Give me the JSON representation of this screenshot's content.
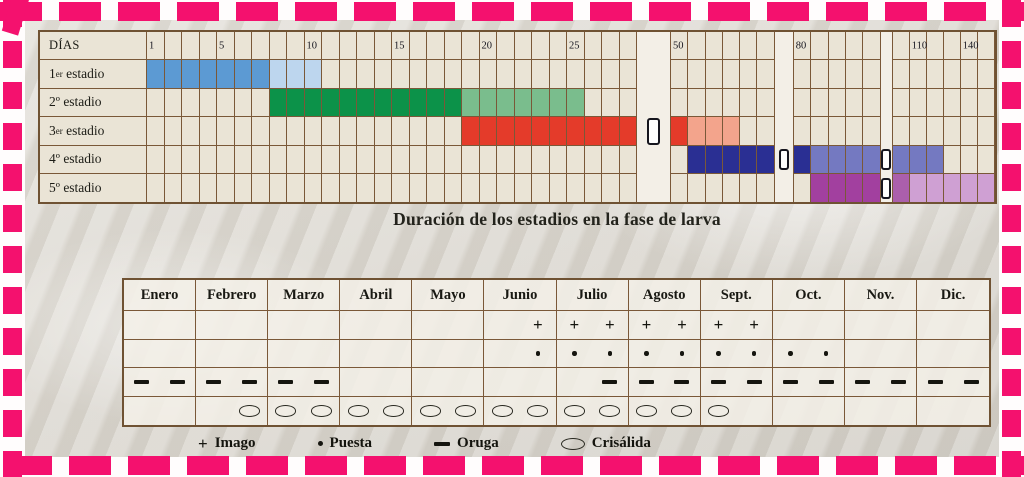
{
  "title": "Duración de los estadios en la fase de larva",
  "colors": {
    "stage1_solid": "#5c9ad3",
    "stage1_light": "#bdd6ee",
    "stage2_solid": "#0c9249",
    "stage2_light": "#7abd8d",
    "stage3_solid": "#e43b2a",
    "stage3_light": "#f3a48c",
    "stage4_solid": "#2a2f93",
    "stage4_light": "#7479c1",
    "stage5_solid": "#a2409f",
    "stage5_mid": "#ab5fac",
    "stage5_light": "#cfa0d3",
    "grid_line": "#7a5838",
    "cell_bg": "#eae4d6",
    "break_bg": "#f3efe7",
    "border_pink": "#f4116e",
    "text": "#1c1c16"
  },
  "chart_data": [
    {
      "type": "gantt",
      "title": "Duración de los estadios en la fase de larva",
      "x_axis_label": "DÍAS",
      "x_ticks": [
        "1",
        "5",
        "10",
        "15",
        "20",
        "25",
        "50",
        "80",
        "110",
        "140"
      ],
      "rows": [
        {
          "num": "1",
          "ord": "er",
          "word": "estadio"
        },
        {
          "num": "2",
          "ord": "º",
          "word": "estadio"
        },
        {
          "num": "3",
          "ord": "er",
          "word": "estadio"
        },
        {
          "num": "4",
          "ord": "º",
          "word": "estadio"
        },
        {
          "num": "5",
          "ord": "º",
          "word": "estadio"
        }
      ],
      "sections": [
        {
          "count": 28,
          "w": 17.5,
          "ticks": {
            "1": "1",
            "5": "5",
            "10": "10",
            "15": "15",
            "20": "20",
            "25": "25"
          },
          "fills": [
            {
              "row": 0,
              "from": 1,
              "to": 7,
              "color": "stage1_solid"
            },
            {
              "row": 0,
              "from": 8,
              "to": 10,
              "color": "stage1_light"
            },
            {
              "row": 1,
              "from": 8,
              "to": 18,
              "color": "stage2_solid"
            },
            {
              "row": 1,
              "from": 19,
              "to": 25,
              "color": "stage2_light"
            },
            {
              "row": 2,
              "from": 19,
              "to": 28,
              "color": "stage3_solid"
            }
          ]
        },
        {
          "break": true,
          "width": 33,
          "big": true,
          "brackets": [
            2
          ]
        },
        {
          "count": 6,
          "w": 17.3,
          "ticks": {
            "1": "50"
          },
          "fills": [
            {
              "row": 2,
              "from": 1,
              "to": 1,
              "color": "stage3_solid"
            },
            {
              "row": 2,
              "from": 2,
              "to": 4,
              "color": "stage3_light"
            },
            {
              "row": 3,
              "from": 2,
              "to": 6,
              "color": "stage4_solid"
            }
          ]
        },
        {
          "break": true,
          "width": 18,
          "brackets": [
            3
          ]
        },
        {
          "count": 5,
          "w": 17.4,
          "ticks": {
            "1": "80"
          },
          "fills": [
            {
              "row": 3,
              "from": 1,
              "to": 1,
              "color": "stage4_solid"
            },
            {
              "row": 3,
              "from": 2,
              "to": 5,
              "color": "stage4_light"
            },
            {
              "row": 4,
              "from": 2,
              "to": 5,
              "color": "stage5_solid"
            }
          ]
        },
        {
          "break": true,
          "width": 11,
          "brackets": [
            3,
            4
          ]
        },
        {
          "count": 6,
          "w": 17,
          "ticks": {
            "2": "110",
            "5": "140"
          },
          "fills": [
            {
              "row": 3,
              "from": 1,
              "to": 3,
              "color": "stage4_light"
            },
            {
              "row": 4,
              "from": 1,
              "to": 1,
              "color": "stage5_mid"
            },
            {
              "row": 4,
              "from": 2,
              "to": 6,
              "color": "stage5_light"
            }
          ]
        }
      ]
    },
    {
      "type": "table",
      "months": [
        "Enero",
        "Febrero",
        "Marzo",
        "Abril",
        "Mayo",
        "Junio",
        "Julio",
        "Agosto",
        "Sept.",
        "Oct.",
        "Nov.",
        "Dic."
      ],
      "symbol_defs": {
        "plus": "+"
      },
      "rows": [
        {
          "name": "imago",
          "symbol": "plus",
          "cells": [
            [
              0,
              0
            ],
            [
              0,
              0
            ],
            [
              0,
              0
            ],
            [
              0,
              0
            ],
            [
              0,
              0
            ],
            [
              0,
              1
            ],
            [
              1,
              1
            ],
            [
              1,
              1
            ],
            [
              1,
              1
            ],
            [
              0,
              0
            ],
            [
              0,
              0
            ],
            [
              0,
              0
            ]
          ]
        },
        {
          "name": "puesta",
          "symbol": "dot",
          "cells": [
            [
              0,
              0
            ],
            [
              0,
              0
            ],
            [
              0,
              0
            ],
            [
              0,
              0
            ],
            [
              0,
              0
            ],
            [
              0,
              1
            ],
            [
              1,
              1
            ],
            [
              1,
              1
            ],
            [
              1,
              1
            ],
            [
              1,
              1
            ],
            [
              0,
              0
            ],
            [
              0,
              0
            ]
          ]
        },
        {
          "name": "oruga",
          "symbol": "dash",
          "cells": [
            [
              1,
              1
            ],
            [
              1,
              1
            ],
            [
              1,
              1
            ],
            [
              0,
              0
            ],
            [
              0,
              0
            ],
            [
              0,
              0
            ],
            [
              0,
              1
            ],
            [
              1,
              1
            ],
            [
              1,
              1
            ],
            [
              1,
              1
            ],
            [
              1,
              1
            ],
            [
              1,
              1
            ]
          ]
        },
        {
          "name": "crisalida",
          "symbol": "oval",
          "cells": [
            [
              0,
              0
            ],
            [
              0,
              1
            ],
            [
              1,
              1
            ],
            [
              1,
              1
            ],
            [
              1,
              1
            ],
            [
              1,
              1
            ],
            [
              1,
              1
            ],
            [
              1,
              1
            ],
            [
              1,
              0
            ],
            [
              0,
              0
            ],
            [
              0,
              0
            ],
            [
              0,
              0
            ]
          ]
        }
      ]
    }
  ],
  "legend": [
    {
      "name": "imago",
      "symbol": "plus",
      "label": "Imago"
    },
    {
      "name": "puesta",
      "symbol": "dot",
      "label": "Puesta"
    },
    {
      "name": "oruga",
      "symbol": "dash",
      "label": "Oruga"
    },
    {
      "name": "crisalida",
      "symbol": "oval",
      "label": "Crisálida"
    }
  ]
}
